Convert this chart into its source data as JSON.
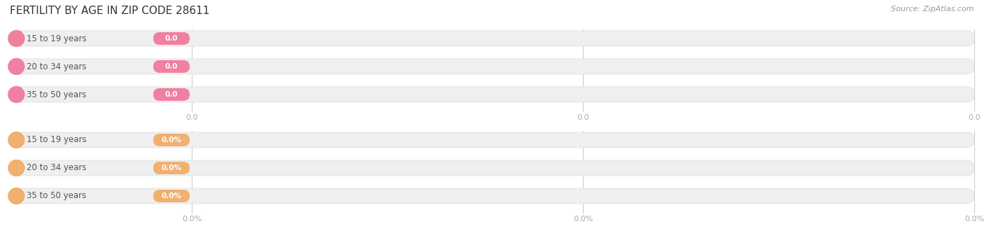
{
  "title": "FERTILITY BY AGE IN ZIP CODE 28611",
  "source": "Source: ZipAtlas.com",
  "top_group": {
    "labels": [
      "15 to 19 years",
      "20 to 34 years",
      "35 to 50 years"
    ],
    "values": [
      0.0,
      0.0,
      0.0
    ],
    "circle_color": "#f080a0",
    "badge_color": "#f080a0",
    "value_format": "0.0",
    "axis_ticks": [
      "0.0",
      "0.0",
      "0.0"
    ]
  },
  "bottom_group": {
    "labels": [
      "15 to 19 years",
      "20 to 34 years",
      "35 to 50 years"
    ],
    "values": [
      0.0,
      0.0,
      0.0
    ],
    "circle_color": "#f0b070",
    "badge_color": "#f0b070",
    "value_format": "0.0%",
    "axis_ticks": [
      "0.0%",
      "0.0%",
      "0.0%"
    ]
  },
  "bg_color": "#ffffff",
  "bar_bg_color": "#efefef",
  "bar_border_color": "#e0e0e0",
  "title_fontsize": 11,
  "label_fontsize": 8.5,
  "badge_fontsize": 7.5,
  "tick_fontsize": 8,
  "source_fontsize": 8,
  "source_color": "#999999",
  "tick_color": "#aaaaaa",
  "label_color": "#555555"
}
